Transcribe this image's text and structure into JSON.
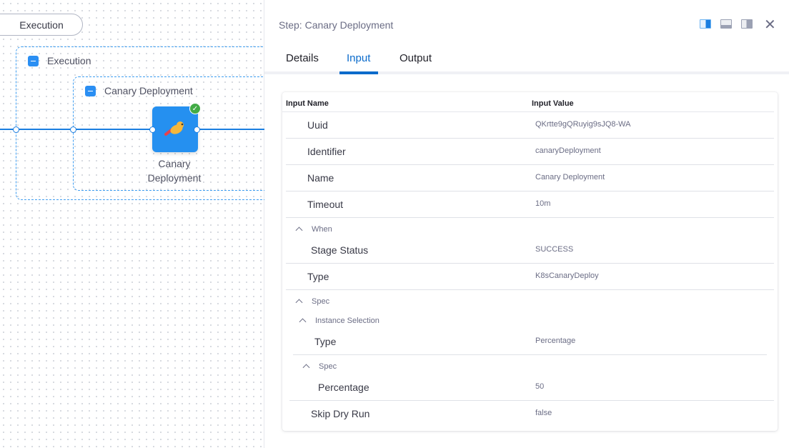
{
  "canvas": {
    "stage_pill": "Execution",
    "execution_group": "Execution",
    "step_group": "Canary Deployment",
    "node_label_line1": "Canary",
    "node_label_line2": "Deployment",
    "node_status": "success",
    "accent": "#2590f0"
  },
  "panel": {
    "title": "Step: Canary Deployment",
    "tabs": [
      "Details",
      "Input",
      "Output"
    ],
    "active_tab": "Input",
    "icons": [
      "split-right-view-icon",
      "split-bottom-view-icon",
      "float-view-icon",
      "close-icon"
    ]
  },
  "table": {
    "headers": {
      "name": "Input Name",
      "value": "Input Value"
    },
    "rows": [
      {
        "label": "Uuid",
        "value": "QKrtte9gQRuyig9sJQ8-WA"
      },
      {
        "label": "Identifier",
        "value": "canaryDeployment"
      },
      {
        "label": "Name",
        "value": "Canary Deployment"
      },
      {
        "label": "Timeout",
        "value": "10m"
      },
      {
        "group": "When"
      },
      {
        "label": "Stage Status",
        "value": "SUCCESS"
      },
      {
        "label": "Type",
        "value": "K8sCanaryDeploy"
      },
      {
        "group": "Spec"
      },
      {
        "group": "Instance Selection"
      },
      {
        "label": "Type",
        "value": "Percentage"
      },
      {
        "group": "Spec"
      },
      {
        "label": "Percentage",
        "value": "50"
      },
      {
        "label": "Skip Dry Run",
        "value": "false"
      }
    ]
  }
}
